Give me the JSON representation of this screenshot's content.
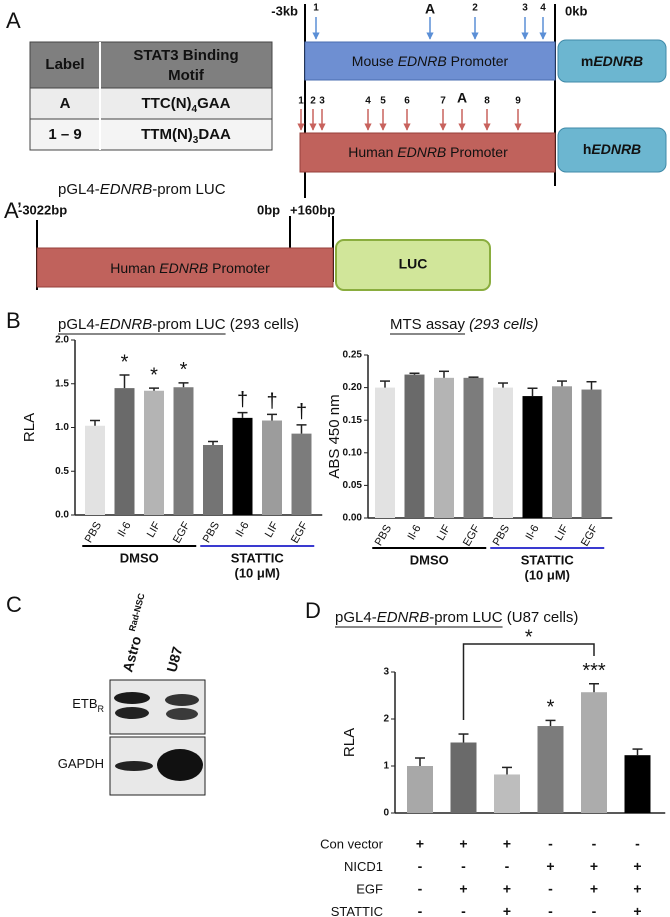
{
  "panel_letters": [
    "A",
    "A’",
    "B",
    "C",
    "D"
  ],
  "table": {
    "header": [
      "Label",
      "STAT3 Binding Motif"
    ],
    "rows": [
      [
        "A",
        {
          "text": "TTC(N)",
          "sub": "4",
          "tail": "GAA"
        }
      ],
      [
        "1 – 9",
        {
          "text": "TTM(N)",
          "sub": "3",
          "tail": "DAA"
        }
      ]
    ]
  },
  "mouse": {
    "start": "-3kb",
    "end": "0kb",
    "sites": [
      "1",
      "A",
      "2",
      "3",
      "4"
    ],
    "promoter": [
      "Mouse ",
      "EDNRB",
      " Promoter"
    ],
    "gene": [
      "m",
      "EDNRB"
    ]
  },
  "human": {
    "sites": [
      "1",
      "2",
      "3",
      "4",
      "5",
      "6",
      "7",
      "A",
      "8",
      "9"
    ],
    "promoter": [
      "Human ",
      "EDNRB",
      " Promoter"
    ],
    "gene": [
      "h",
      "EDNRB"
    ]
  },
  "construct": {
    "title": [
      "pGL4-",
      "EDNRB",
      "-prom LUC"
    ],
    "start": "-3022bp",
    "mid": "0bp",
    "end": "+160bp",
    "promoter": [
      "Human ",
      "EDNRB",
      " Promoter"
    ],
    "reporter": "LUC"
  },
  "blot": {
    "lanes": [
      {
        "name": "Astro ",
        "sup": "Rad-NSC"
      },
      {
        "name": "U87"
      }
    ],
    "rows": [
      {
        "name": "ETB",
        "sub": "R"
      },
      {
        "name": "GAPDH"
      }
    ]
  },
  "chart_data": [
    {
      "type": "bar",
      "title": [
        "pGL4-",
        "EDNRB",
        "-prom LUC",
        " (293 cells)"
      ],
      "ylabel": "RLA",
      "categories": [
        "PBS",
        "Il-6",
        "LIF",
        "EGF",
        "PBS",
        "Il-6",
        "LIF",
        "EGF"
      ],
      "values": [
        1.02,
        1.45,
        1.42,
        1.46,
        0.8,
        1.11,
        1.08,
        0.93
      ],
      "errors": [
        0.06,
        0.15,
        0.03,
        0.05,
        0.04,
        0.06,
        0.07,
        0.1
      ],
      "colors": [
        "#e2e2e2",
        "#6a6a6a",
        "#b4b4b4",
        "#7c7c7c",
        "#747474",
        "#000000",
        "#9c9c9c",
        "#7c7c7c"
      ],
      "annotations": [
        null,
        "*",
        "*",
        "*",
        null,
        "†",
        "†",
        "†"
      ],
      "ylim": [
        0,
        2
      ],
      "yticks": [
        {
          "value": 0,
          "label": "0.0"
        },
        {
          "value": 0.5,
          "label": "0.5"
        },
        {
          "value": 1,
          "label": "1.0"
        },
        {
          "value": 1.5,
          "label": "1.5"
        },
        {
          "value": 2,
          "label": "2.0"
        }
      ],
      "groups": [
        {
          "name": [
            "DMSO"
          ],
          "color": "#000000"
        },
        {
          "name": [
            "STATTIC",
            "(10 μM)"
          ],
          "color": "#3a3ad0"
        }
      ]
    },
    {
      "type": "bar",
      "title": [
        "MTS assay",
        " (293 cells)"
      ],
      "ylabel": "ABS 450 nm",
      "categories": [
        "PBS",
        "Il-6",
        "LIF",
        "EGF",
        "PBS",
        "Il-6",
        "LIF",
        "EGF"
      ],
      "values": [
        0.2,
        0.22,
        0.215,
        0.215,
        0.2,
        0.187,
        0.202,
        0.197
      ],
      "errors": [
        0.01,
        0.002,
        0.01,
        0.001,
        0.007,
        0.012,
        0.008,
        0.012
      ],
      "colors": [
        "#e2e2e2",
        "#6a6a6a",
        "#b4b4b4",
        "#7c7c7c",
        "#e2e2e2",
        "#000000",
        "#9c9c9c",
        "#7c7c7c"
      ],
      "ylim": [
        0,
        0.25
      ],
      "yticks": [
        {
          "value": 0,
          "label": "0.00"
        },
        {
          "value": 0.05,
          "label": "0.05"
        },
        {
          "value": 0.1,
          "label": "0.10"
        },
        {
          "value": 0.15,
          "label": "0.15"
        },
        {
          "value": 0.2,
          "label": "0.20"
        },
        {
          "value": 0.25,
          "label": "0.25"
        }
      ],
      "groups": [
        {
          "name": [
            "DMSO"
          ],
          "color": "#000000"
        },
        {
          "name": [
            "STATTIC",
            "(10 μM)"
          ],
          "color": "#3a3ad0"
        }
      ]
    },
    {
      "type": "bar",
      "title": [
        "pGL4-",
        "EDNRB",
        "-prom LUC",
        " (U87 cells)"
      ],
      "ylabel": "RLA",
      "values": [
        1.0,
        1.5,
        0.82,
        1.85,
        2.57,
        1.23
      ],
      "errors": [
        0.17,
        0.18,
        0.15,
        0.12,
        0.18,
        0.13
      ],
      "colors": [
        "#a8a8a8",
        "#6a6a6a",
        "#bdbdbd",
        "#7c7c7c",
        "#acacac",
        "#000000"
      ],
      "annotations": [
        null,
        null,
        null,
        "*",
        "***",
        null
      ],
      "bracket_label": "*",
      "ylim": [
        0,
        3
      ],
      "yticks": [
        0,
        1,
        2,
        3
      ],
      "conditions": [
        {
          "name": "Con vector",
          "signs": [
            "+",
            "+",
            "+",
            "-",
            "-",
            "-"
          ]
        },
        {
          "name": "NICD1",
          "signs": [
            "-",
            "-",
            "-",
            "+",
            "+",
            "+"
          ]
        },
        {
          "name": "EGF",
          "signs": [
            "-",
            "+",
            "+",
            "-",
            "+",
            "+"
          ]
        },
        {
          "name": "STATTIC",
          "signs": [
            "-",
            "-",
            "+",
            "-",
            "-",
            "+"
          ]
        }
      ]
    }
  ]
}
